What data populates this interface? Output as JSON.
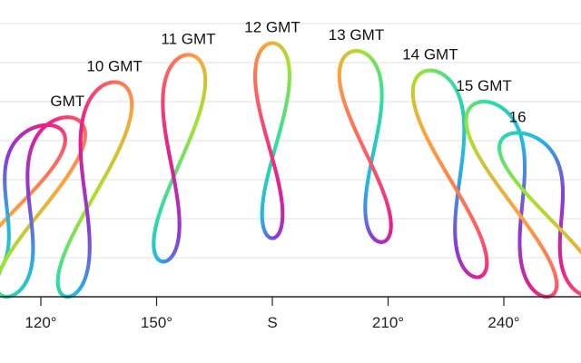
{
  "chart_data": {
    "type": "line",
    "title": "",
    "xlabel": "",
    "ylabel": "",
    "x_axis": {
      "unit": "degrees azimuth",
      "range": [
        113,
        253
      ],
      "ticks": [
        {
          "value": 120,
          "label": "120°"
        },
        {
          "value": 150,
          "label": "150°"
        },
        {
          "value": 180,
          "label": "S"
        },
        {
          "value": 210,
          "label": "210°"
        },
        {
          "value": 240,
          "label": "240°"
        }
      ]
    },
    "y_axis": {
      "unit": "degrees altitude",
      "range": [
        0,
        70
      ],
      "tick_labels_shown": false,
      "gridlines": [
        10,
        20,
        30,
        40,
        50,
        60,
        70
      ]
    },
    "grid": true,
    "color_scale": [
      "#e91e8c",
      "#ff5e62",
      "#ffa23a",
      "#a6e22e",
      "#2ee0a0",
      "#25b4e6",
      "#8a3ad8"
    ],
    "series": [
      {
        "label": "",
        "center_az": 113,
        "bottom_alt": 4,
        "top_alt": 44
      },
      {
        "label": "GMT",
        "center_az": 119,
        "bottom_alt": 0,
        "top_alt": 46
      },
      {
        "label": "10 GMT",
        "center_az": 133,
        "bottom_alt": 0,
        "top_alt": 55
      },
      {
        "label": "11 GMT",
        "center_az": 155,
        "bottom_alt": 9,
        "top_alt": 62
      },
      {
        "label": "12 GMT",
        "center_az": 180,
        "bottom_alt": 15,
        "top_alt": 65
      },
      {
        "label": "13 GMT",
        "center_az": 205,
        "bottom_alt": 14,
        "top_alt": 63
      },
      {
        "label": "14 GMT",
        "center_az": 227,
        "bottom_alt": 5,
        "top_alt": 58
      },
      {
        "label": "15 GMT",
        "center_az": 243,
        "bottom_alt": 0,
        "top_alt": 50
      },
      {
        "label": "16",
        "center_az": 253,
        "bottom_alt": 0,
        "top_alt": 42
      }
    ]
  }
}
